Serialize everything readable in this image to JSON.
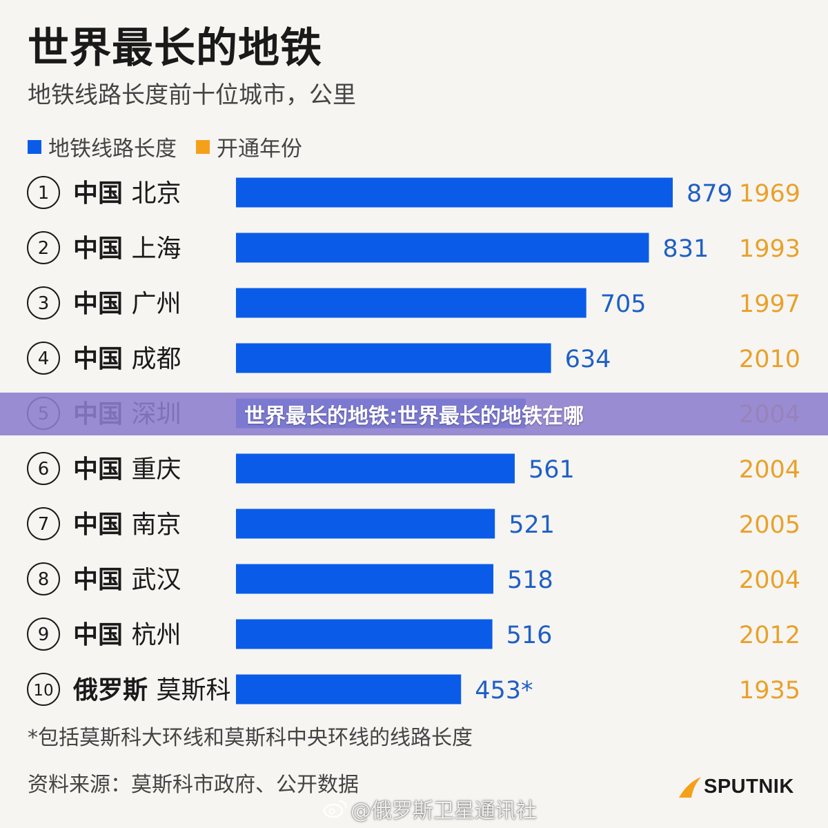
{
  "chart_data": {
    "type": "bar",
    "orientation": "horizontal",
    "title": "世界最长的地铁",
    "subtitle": "地铁线路长度前十位城市，公里",
    "legend": [
      {
        "label": "地铁线路长度",
        "color": "#0a5ce8"
      },
      {
        "label": "开通年份",
        "color": "#f5a01a"
      }
    ],
    "rows": [
      {
        "rank": "1",
        "country": "中国",
        "city": "北京",
        "value": 879,
        "value_label": "879",
        "year": "1969"
      },
      {
        "rank": "2",
        "country": "中国",
        "city": "上海",
        "value": 831,
        "value_label": "831",
        "year": "1993"
      },
      {
        "rank": "3",
        "country": "中国",
        "city": "广州",
        "value": 705,
        "value_label": "705",
        "year": "1997"
      },
      {
        "rank": "4",
        "country": "中国",
        "city": "成都",
        "value": 634,
        "value_label": "634",
        "year": "2010"
      },
      {
        "rank": "5",
        "country": "中国",
        "city": "深圳",
        "value": 583,
        "value_label": "",
        "year": "2004"
      },
      {
        "rank": "6",
        "country": "中国",
        "city": "重庆",
        "value": 561,
        "value_label": "561",
        "year": "2004"
      },
      {
        "rank": "7",
        "country": "中国",
        "city": "南京",
        "value": 521,
        "value_label": "521",
        "year": "2005"
      },
      {
        "rank": "8",
        "country": "中国",
        "city": "武汉",
        "value": 518,
        "value_label": "518",
        "year": "2004"
      },
      {
        "rank": "9",
        "country": "中国",
        "city": "杭州",
        "value": 516,
        "value_label": "516",
        "year": "2012"
      },
      {
        "rank": "10",
        "country": "俄罗斯",
        "city": "莫斯科",
        "value": 453,
        "value_label": "453*",
        "year": "1935"
      }
    ],
    "xlim": [
      0,
      879
    ],
    "grid": false,
    "legend_position": "top-left"
  },
  "colors": {
    "bar": "#0a5ce8",
    "value_label": "#1f5fc4",
    "year_label": "#e9a12a",
    "banner": "#8c7dcd"
  },
  "footnote": "*包括莫斯科大环线和莫斯科中央环线的线路长度",
  "source": "资料来源：莫斯科市政府、公开数据",
  "logo": {
    "text": "SPUTNIK",
    "icon": "sputnik-swoosh-icon"
  },
  "watermark": {
    "text": "@俄罗斯卫星通讯社",
    "icon": "weibo-icon"
  },
  "banner": {
    "text": "世界最长的地铁:世界最长的地铁在哪"
  }
}
